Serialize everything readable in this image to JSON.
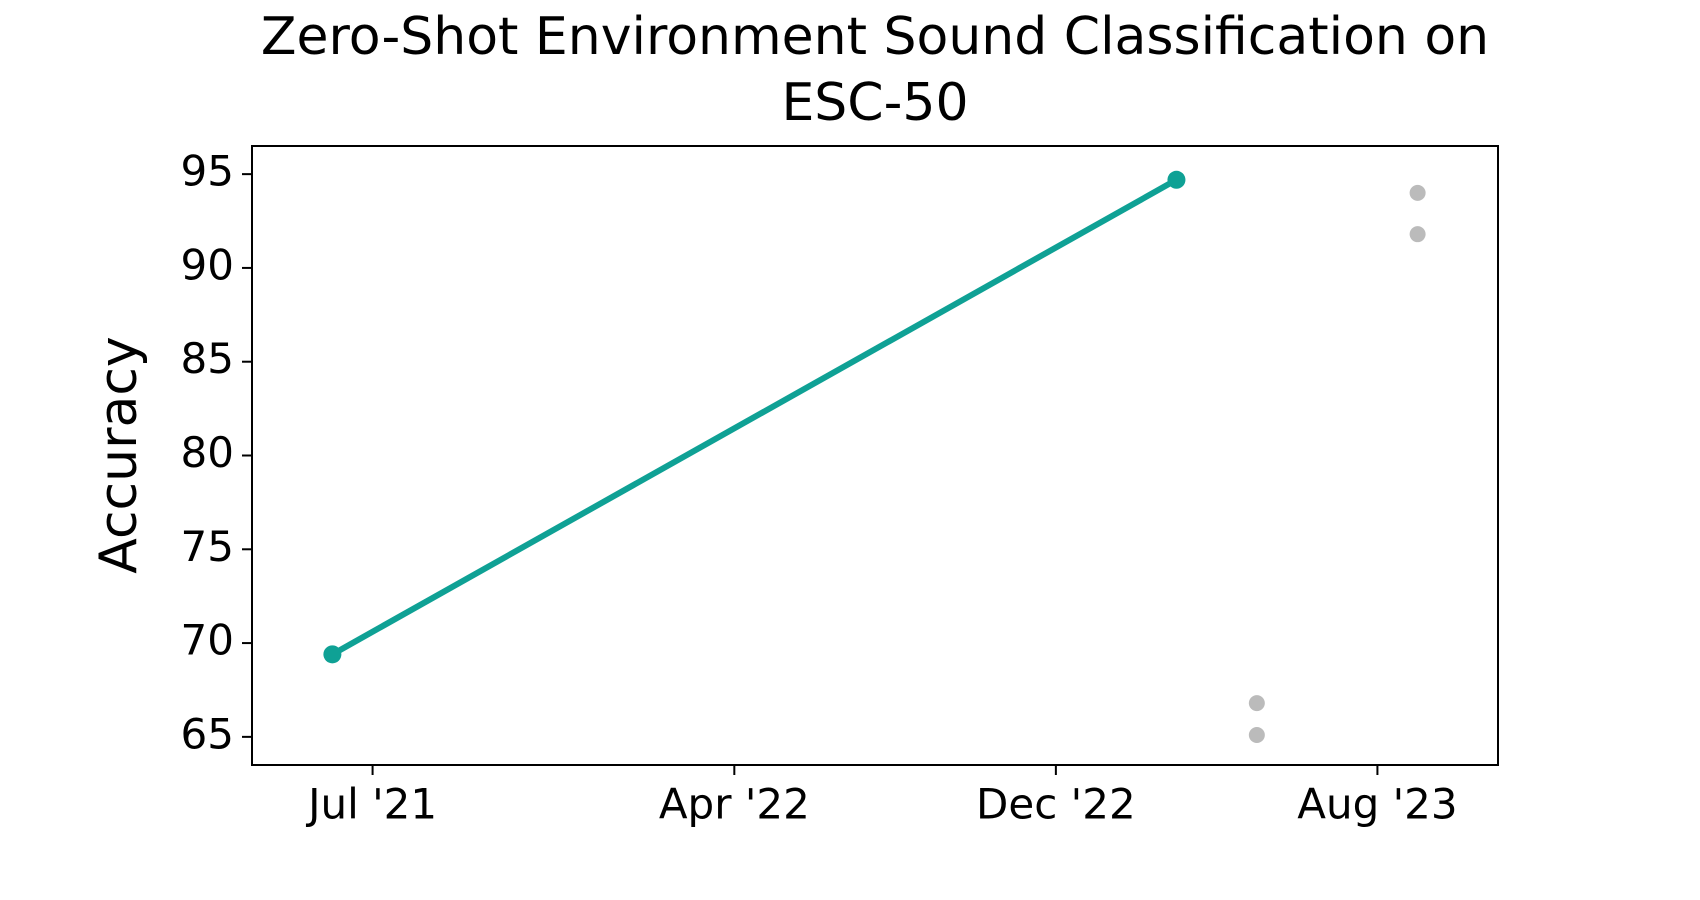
{
  "chart_data": {
    "type": "line",
    "title": [
      "Zero-Shot Environment Sound Classification on",
      "ESC-50"
    ],
    "y_label": "Accuracy",
    "series": [
      {
        "color": "#0fa195",
        "line": true,
        "x": [
          "2021-06",
          "2023-03"
        ],
        "values": [
          69.4,
          94.7
        ]
      },
      {
        "color": "#bbbbbb",
        "line": false,
        "x": [
          "2023-05",
          "2023-05",
          "2023-09",
          "2023-09"
        ],
        "values": [
          66.8,
          65.1,
          94.0,
          91.8
        ]
      }
    ],
    "xlim": [
      "2021-04",
      "2023-11"
    ],
    "xticks": [
      {
        "value": "2021-07",
        "label": "Jul '21"
      },
      {
        "value": "2022-04",
        "label": "Apr '22"
      },
      {
        "value": "2022-12",
        "label": "Dec '22"
      },
      {
        "value": "2023-08",
        "label": "Aug '23"
      }
    ],
    "ylim": [
      63.5,
      96.5
    ],
    "yticks": [
      65,
      70,
      75,
      80,
      85,
      90,
      95
    ],
    "grid": false
  }
}
